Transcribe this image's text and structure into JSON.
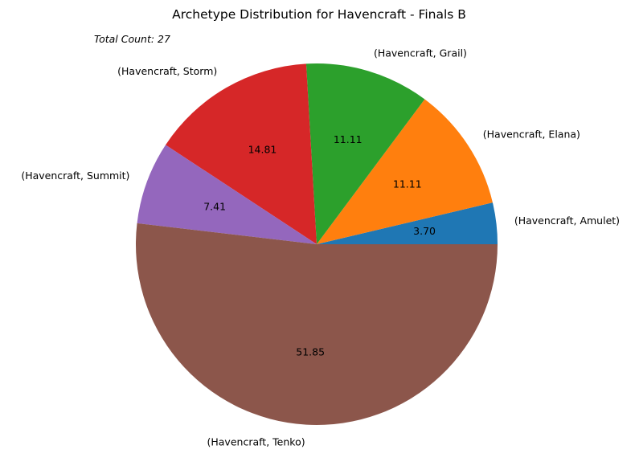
{
  "chart_data": {
    "type": "pie",
    "title": "Archetype Distribution for Havencraft - Finals B",
    "annotation": "Total Count: 27",
    "slices": [
      {
        "label": "(Havencraft, Amulet)",
        "count": 1,
        "percent": "3.70",
        "color": "#1f77b4"
      },
      {
        "label": "(Havencraft, Elana)",
        "count": 3,
        "percent": "11.11",
        "color": "#ff7f0e"
      },
      {
        "label": "(Havencraft, Grail)",
        "count": 3,
        "percent": "11.11",
        "color": "#2ca02c"
      },
      {
        "label": "(Havencraft, Storm)",
        "count": 4,
        "percent": "14.81",
        "color": "#d62728"
      },
      {
        "label": "(Havencraft, Summit)",
        "count": 2,
        "percent": "7.41",
        "color": "#9467bd"
      },
      {
        "label": "(Havencraft, Tenko)",
        "count": 14,
        "percent": "51.85",
        "color": "#8c564b"
      }
    ],
    "start_angle_deg": 0,
    "direction": "counterclockwise"
  }
}
